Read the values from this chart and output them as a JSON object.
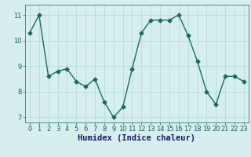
{
  "x": [
    0,
    1,
    2,
    3,
    4,
    5,
    6,
    7,
    8,
    9,
    10,
    11,
    12,
    13,
    14,
    15,
    16,
    17,
    18,
    19,
    20,
    21,
    22,
    23
  ],
  "y": [
    10.3,
    11.0,
    8.6,
    8.8,
    8.9,
    8.4,
    8.2,
    8.5,
    7.6,
    7.0,
    7.4,
    8.9,
    10.3,
    10.8,
    10.8,
    10.8,
    11.0,
    10.2,
    9.2,
    8.0,
    7.5,
    8.6,
    8.6,
    8.4
  ],
  "line_color": "#1b6b5e",
  "marker": "D",
  "marker_size": 2.5,
  "bg_color": "#d6efee",
  "grid_color": "#b8dedd",
  "axis_bg": "#d6efee",
  "xlabel": "Humidex (Indice chaleur)",
  "ylim": [
    6.8,
    11.4
  ],
  "yticks": [
    7,
    8,
    9,
    10,
    11
  ],
  "xticks": [
    0,
    1,
    2,
    3,
    4,
    5,
    6,
    7,
    8,
    9,
    10,
    11,
    12,
    13,
    14,
    15,
    16,
    17,
    18,
    19,
    20,
    21,
    22,
    23
  ],
  "tick_fontsize": 6,
  "label_fontsize": 7.5,
  "xlabel_color": "#1a1a6a"
}
